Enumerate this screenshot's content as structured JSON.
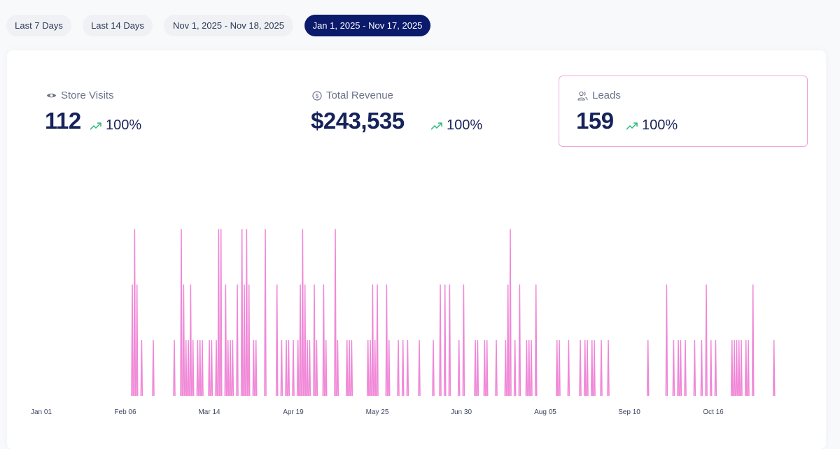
{
  "filters": [
    {
      "label": "Last 7 Days",
      "active": false
    },
    {
      "label": "Last 14 Days",
      "active": false
    },
    {
      "label": "Nov 1, 2025 - Nov 18, 2025",
      "active": false
    },
    {
      "label": "Jan 1, 2025 - Nov 17, 2025",
      "active": true
    }
  ],
  "metrics": [
    {
      "label": "Store Visits",
      "icon": "eye-icon",
      "value": "112",
      "change": "100%"
    },
    {
      "label": "Total Revenue",
      "icon": "dollar-circle-icon",
      "value": "$243,535",
      "change": "100%"
    },
    {
      "label": "Leads",
      "icon": "users-icon",
      "value": "159",
      "change": "100%",
      "selected": true
    }
  ],
  "colors": {
    "accent": "#0b1a6b",
    "line": "#f08ad8",
    "trend_up": "#2fb67c"
  },
  "chart_data": {
    "type": "line",
    "title": "Leads",
    "start_date": "2025-01-01",
    "days": 321,
    "x_tick_labels": [
      "Jan 01",
      "Feb 06",
      "Mar 14",
      "Apr 19",
      "May 25",
      "Jun 30",
      "Aug 05",
      "Sep 10",
      "Oct 16"
    ],
    "x_tick_days": [
      0,
      36,
      72,
      108,
      144,
      180,
      216,
      252,
      288
    ],
    "ylim": [
      0,
      3
    ],
    "grid": false,
    "points": [
      [
        39,
        2
      ],
      [
        40,
        3
      ],
      [
        41,
        2
      ],
      [
        43,
        1
      ],
      [
        48,
        1
      ],
      [
        57,
        1
      ],
      [
        60,
        3
      ],
      [
        61,
        2
      ],
      [
        62,
        1
      ],
      [
        63,
        1
      ],
      [
        64,
        2
      ],
      [
        65,
        1
      ],
      [
        67,
        1
      ],
      [
        68,
        1
      ],
      [
        69,
        1
      ],
      [
        72,
        1
      ],
      [
        73,
        1
      ],
      [
        75,
        1
      ],
      [
        76,
        3
      ],
      [
        77,
        3
      ],
      [
        79,
        2
      ],
      [
        80,
        1
      ],
      [
        81,
        1
      ],
      [
        82,
        1
      ],
      [
        84,
        2
      ],
      [
        86,
        3
      ],
      [
        87,
        2
      ],
      [
        88,
        3
      ],
      [
        89,
        2
      ],
      [
        91,
        1
      ],
      [
        92,
        1
      ],
      [
        96,
        3
      ],
      [
        101,
        2
      ],
      [
        103,
        1
      ],
      [
        105,
        1
      ],
      [
        106,
        1
      ],
      [
        108,
        1
      ],
      [
        110,
        1
      ],
      [
        111,
        2
      ],
      [
        112,
        3
      ],
      [
        113,
        2
      ],
      [
        114,
        1
      ],
      [
        115,
        1
      ],
      [
        117,
        2
      ],
      [
        118,
        1
      ],
      [
        121,
        2
      ],
      [
        122,
        1
      ],
      [
        126,
        3
      ],
      [
        127,
        1
      ],
      [
        131,
        1
      ],
      [
        132,
        1
      ],
      [
        133,
        1
      ],
      [
        140,
        1
      ],
      [
        141,
        1
      ],
      [
        142,
        2
      ],
      [
        143,
        1
      ],
      [
        144,
        2
      ],
      [
        148,
        2
      ],
      [
        149,
        1
      ],
      [
        153,
        1
      ],
      [
        155,
        1
      ],
      [
        157,
        1
      ],
      [
        162,
        1
      ],
      [
        168,
        1
      ],
      [
        171,
        2
      ],
      [
        173,
        2
      ],
      [
        175,
        2
      ],
      [
        179,
        1
      ],
      [
        181,
        2
      ],
      [
        186,
        1
      ],
      [
        187,
        1
      ],
      [
        190,
        1
      ],
      [
        191,
        1
      ],
      [
        195,
        1
      ],
      [
        199,
        1
      ],
      [
        200,
        2
      ],
      [
        201,
        3
      ],
      [
        203,
        1
      ],
      [
        205,
        2
      ],
      [
        208,
        1
      ],
      [
        209,
        1
      ],
      [
        210,
        1
      ],
      [
        212,
        2
      ],
      [
        221,
        1
      ],
      [
        222,
        1
      ],
      [
        226,
        1
      ],
      [
        231,
        1
      ],
      [
        233,
        1
      ],
      [
        234,
        1
      ],
      [
        236,
        1
      ],
      [
        237,
        1
      ],
      [
        240,
        1
      ],
      [
        243,
        1
      ],
      [
        260,
        1
      ],
      [
        268,
        2
      ],
      [
        271,
        1
      ],
      [
        273,
        1
      ],
      [
        274,
        1
      ],
      [
        276,
        1
      ],
      [
        280,
        1
      ],
      [
        283,
        1
      ],
      [
        285,
        2
      ],
      [
        287,
        1
      ],
      [
        289,
        1
      ],
      [
        296,
        1
      ],
      [
        297,
        1
      ],
      [
        298,
        1
      ],
      [
        299,
        1
      ],
      [
        300,
        1
      ],
      [
        302,
        1
      ],
      [
        303,
        1
      ],
      [
        305,
        2
      ],
      [
        314,
        1
      ]
    ]
  }
}
